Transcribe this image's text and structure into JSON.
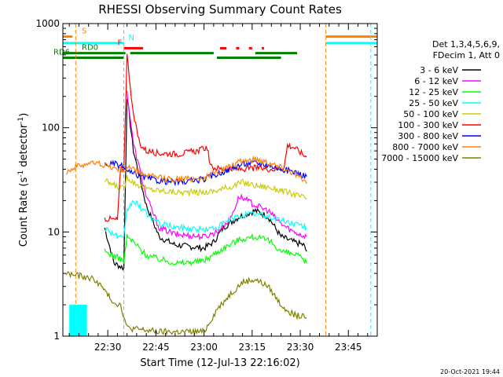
{
  "chart_data": {
    "type": "line",
    "title": "RHESSI Observing Summary Count Rates",
    "xlabel": "Start Time (12-Jul-13 22:16:02)",
    "ylabel_main": "Count Rate (s",
    "ylabel_sup": "-1",
    "ylabel_tail": " detector",
    "ylabel_end": ")",
    "y_scale": "log",
    "ylim": [
      1,
      1000
    ],
    "xlim_minutes": [
      0,
      98
    ],
    "x_origin": "22:16:02",
    "y_ticks": [
      {
        "value": 1,
        "label": "1"
      },
      {
        "value": 10,
        "label": "10"
      },
      {
        "value": 100,
        "label": "100"
      },
      {
        "value": 1000,
        "label": "1000"
      }
    ],
    "x_ticks": [
      {
        "minute": 14,
        "label": "22:30"
      },
      {
        "minute": 29,
        "label": "22:45"
      },
      {
        "minute": 44,
        "label": "23:00"
      },
      {
        "minute": 59,
        "label": "23:15"
      },
      {
        "minute": 74,
        "label": "23:30"
      },
      {
        "minute": 89,
        "label": "23:45"
      }
    ],
    "legend_position": "right",
    "legend_header": [
      "Det 1,3,4,5,6,9,",
      "FDecim 1, Att 0"
    ],
    "series": [
      {
        "name": "3 - 6 keV",
        "color": "#000000",
        "points": [
          [
            13,
            11
          ],
          [
            16,
            5
          ],
          [
            19,
            4.5
          ],
          [
            20,
            200
          ],
          [
            22,
            60
          ],
          [
            26,
            18
          ],
          [
            30,
            9
          ],
          [
            35,
            7.5
          ],
          [
            44,
            7
          ],
          [
            47,
            8
          ],
          [
            50,
            11
          ],
          [
            55,
            14
          ],
          [
            60,
            16
          ],
          [
            64,
            14
          ],
          [
            68,
            9
          ],
          [
            72,
            8
          ],
          [
            75,
            7.5
          ],
          [
            76,
            6.5
          ]
        ]
      },
      {
        "name": "6 - 12 keV",
        "color": "#ff00ff",
        "points": [
          [
            20,
            220
          ],
          [
            22,
            70
          ],
          [
            26,
            22
          ],
          [
            30,
            11
          ],
          [
            35,
            9.5
          ],
          [
            44,
            9
          ],
          [
            48,
            10
          ],
          [
            52,
            13
          ],
          [
            55,
            22
          ],
          [
            60,
            18
          ],
          [
            64,
            16
          ],
          [
            68,
            12
          ],
          [
            72,
            10
          ],
          [
            76,
            9
          ]
        ]
      },
      {
        "name": "12 - 25 keV",
        "color": "#00ff00",
        "points": [
          [
            13,
            6.5
          ],
          [
            18,
            5.5
          ],
          [
            19,
            5.2
          ],
          [
            20,
            9
          ],
          [
            22,
            8
          ],
          [
            26,
            6
          ],
          [
            30,
            5.5
          ],
          [
            36,
            5
          ],
          [
            44,
            5.3
          ],
          [
            50,
            7
          ],
          [
            55,
            8.5
          ],
          [
            60,
            9
          ],
          [
            65,
            8
          ],
          [
            68,
            6.5
          ],
          [
            73,
            6
          ],
          [
            76,
            5
          ]
        ]
      },
      {
        "name": "25 - 50 keV",
        "color": "#00ffff",
        "points": [
          [
            13,
            11
          ],
          [
            16,
            9.5
          ],
          [
            19,
            8.5
          ],
          [
            20,
            16
          ],
          [
            22,
            20
          ],
          [
            26,
            15
          ],
          [
            30,
            12
          ],
          [
            36,
            11
          ],
          [
            44,
            10.5
          ],
          [
            48,
            11
          ],
          [
            52,
            13
          ],
          [
            56,
            14.5
          ],
          [
            60,
            15
          ],
          [
            64,
            14
          ],
          [
            68,
            13
          ],
          [
            72,
            12
          ],
          [
            76,
            11
          ]
        ]
      },
      {
        "name": "50 - 100 keV",
        "color": "#cccc00",
        "points": [
          [
            13,
            31
          ],
          [
            16,
            28
          ],
          [
            19,
            26
          ],
          [
            20,
            34
          ],
          [
            22,
            30
          ],
          [
            26,
            26
          ],
          [
            30,
            25
          ],
          [
            36,
            24
          ],
          [
            44,
            24
          ],
          [
            48,
            25
          ],
          [
            52,
            27
          ],
          [
            56,
            30
          ],
          [
            60,
            28
          ],
          [
            64,
            27
          ],
          [
            68,
            25
          ],
          [
            72,
            23
          ],
          [
            76,
            21
          ]
        ]
      },
      {
        "name": "100 - 300 keV",
        "color": "#ff0000",
        "points": [
          [
            13,
            13.5
          ],
          [
            17,
            13
          ],
          [
            18,
            40
          ],
          [
            19,
            40
          ],
          [
            20,
            500
          ],
          [
            22,
            130
          ],
          [
            24,
            70
          ],
          [
            26,
            60
          ],
          [
            30,
            57
          ],
          [
            36,
            56
          ],
          [
            42,
            60
          ],
          [
            45,
            65
          ],
          [
            46,
            42
          ],
          [
            50,
            40
          ],
          [
            56,
            40
          ],
          [
            60,
            41
          ],
          [
            66,
            40
          ],
          [
            69,
            42
          ],
          [
            70,
            68
          ],
          [
            72,
            65
          ],
          [
            76,
            52
          ]
        ]
      },
      {
        "name": "300 - 800 keV",
        "color": "#0000ff",
        "points": [
          [
            13,
            44
          ],
          [
            16,
            45
          ],
          [
            19,
            42
          ],
          [
            20,
            38
          ],
          [
            22,
            36
          ],
          [
            26,
            33
          ],
          [
            30,
            31
          ],
          [
            36,
            30
          ],
          [
            44,
            32
          ],
          [
            50,
            38
          ],
          [
            56,
            45
          ],
          [
            60,
            46
          ],
          [
            64,
            44
          ],
          [
            68,
            40
          ],
          [
            72,
            38
          ],
          [
            76,
            34
          ]
        ]
      },
      {
        "name": "800 - 7000 keV",
        "color": "#ff8000",
        "points": [
          [
            1,
            38
          ],
          [
            4,
            42
          ],
          [
            8,
            46
          ],
          [
            12,
            45
          ],
          [
            16,
            41
          ],
          [
            19,
            39
          ],
          [
            20,
            42
          ],
          [
            22,
            40
          ],
          [
            26,
            35
          ],
          [
            30,
            33
          ],
          [
            36,
            32
          ],
          [
            44,
            33
          ],
          [
            50,
            40
          ],
          [
            56,
            48
          ],
          [
            60,
            50
          ],
          [
            64,
            47
          ],
          [
            68,
            42
          ],
          [
            72,
            37
          ],
          [
            76,
            29
          ]
        ]
      },
      {
        "name": "7000 - 15000 keV",
        "color": "#808000",
        "points": [
          [
            1,
            4
          ],
          [
            5,
            3.8
          ],
          [
            10,
            3.5
          ],
          [
            12,
            3
          ],
          [
            14,
            2.5
          ],
          [
            16,
            2.1
          ],
          [
            18,
            2.0
          ],
          [
            20,
            1.2
          ],
          [
            30,
            1.1
          ],
          [
            44,
            1.1
          ],
          [
            48,
            1.8
          ],
          [
            52,
            2.5
          ],
          [
            56,
            3.3
          ],
          [
            60,
            3.5
          ],
          [
            64,
            3
          ],
          [
            68,
            2
          ],
          [
            72,
            1.6
          ],
          [
            76,
            1.5
          ]
        ]
      }
    ],
    "cyan_block": {
      "color": "#00ffff",
      "x0": 2,
      "x1": 7.5,
      "y0": 1,
      "y1": 2
    },
    "state_flags": [
      {
        "label": "S",
        "color": "#ff8000",
        "value": 750,
        "segments": [
          [
            0,
            3
          ],
          [
            82,
            98
          ]
        ]
      },
      {
        "label": "N",
        "color": "#00ffff",
        "value": 650,
        "segments": [
          [
            0,
            19
          ],
          [
            82,
            98
          ]
        ]
      },
      {
        "label": "F",
        "color": "#ff0000",
        "value": 580,
        "segments": [
          [
            19,
            25
          ],
          [
            49,
            51
          ],
          [
            54,
            55
          ],
          [
            58,
            59
          ],
          [
            62,
            62.7
          ]
        ]
      },
      {
        "label": "RD0",
        "color": "#008000",
        "value": 520,
        "segments": [
          [
            0,
            19.5
          ],
          [
            21,
            47
          ],
          [
            60,
            73
          ]
        ]
      },
      {
        "label": "RD6",
        "color": "#008000",
        "value": 470,
        "segments": [
          [
            0,
            19
          ],
          [
            48,
            68
          ]
        ]
      }
    ],
    "vertical_markers": [
      {
        "minute": 4,
        "color": "#ff8000"
      },
      {
        "minute": 19,
        "color": "#00ffff"
      },
      {
        "minute": 82,
        "color": "#ff8000"
      },
      {
        "minute": 96,
        "color": "#00ffff"
      }
    ],
    "timestamp": "20-Oct-2021 19:44"
  }
}
